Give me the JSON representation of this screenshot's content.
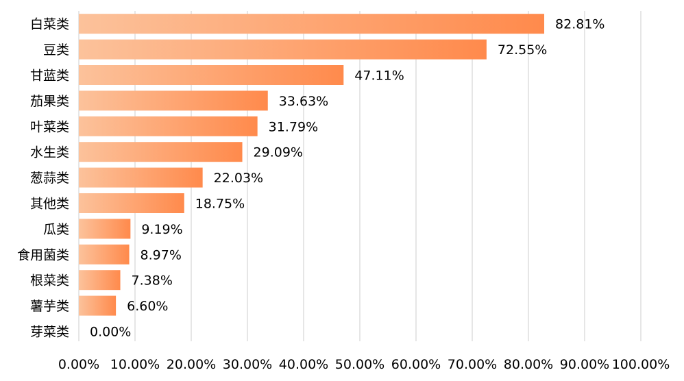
{
  "chart_data": {
    "type": "bar",
    "orientation": "horizontal",
    "title": "",
    "xlabel": "",
    "ylabel": "",
    "categories": [
      "白菜类",
      "豆类",
      "甘蓝类",
      "茄果类",
      "叶菜类",
      "水生类",
      "葱蒜类",
      "其他类",
      "瓜类",
      "食用菌类",
      "根菜类",
      "薯芋类",
      "芽菜类"
    ],
    "values": [
      82.81,
      72.55,
      47.11,
      33.63,
      31.79,
      29.09,
      22.03,
      18.75,
      9.19,
      8.97,
      7.38,
      6.6,
      0.0
    ],
    "value_labels": [
      "82.81%",
      "72.55%",
      "47.11%",
      "33.63%",
      "31.79%",
      "29.09%",
      "22.03%",
      "18.75%",
      "9.19%",
      "8.97%",
      "7.38%",
      "6.60%",
      "0.00%"
    ],
    "xlim": [
      0,
      100
    ],
    "x_ticks": [
      0,
      10,
      20,
      30,
      40,
      50,
      60,
      70,
      80,
      90,
      100
    ],
    "x_tick_labels": [
      "0.00%",
      "10.00%",
      "20.00%",
      "30.00%",
      "40.00%",
      "50.00%",
      "60.00%",
      "70.00%",
      "80.00%",
      "90.00%",
      "100.00%"
    ],
    "grid": "vertical",
    "legend": "none",
    "bar_gradient": {
      "start": "#fcc29b",
      "end": "#ff8a4c"
    },
    "grid_color": "#d9d9d9"
  }
}
